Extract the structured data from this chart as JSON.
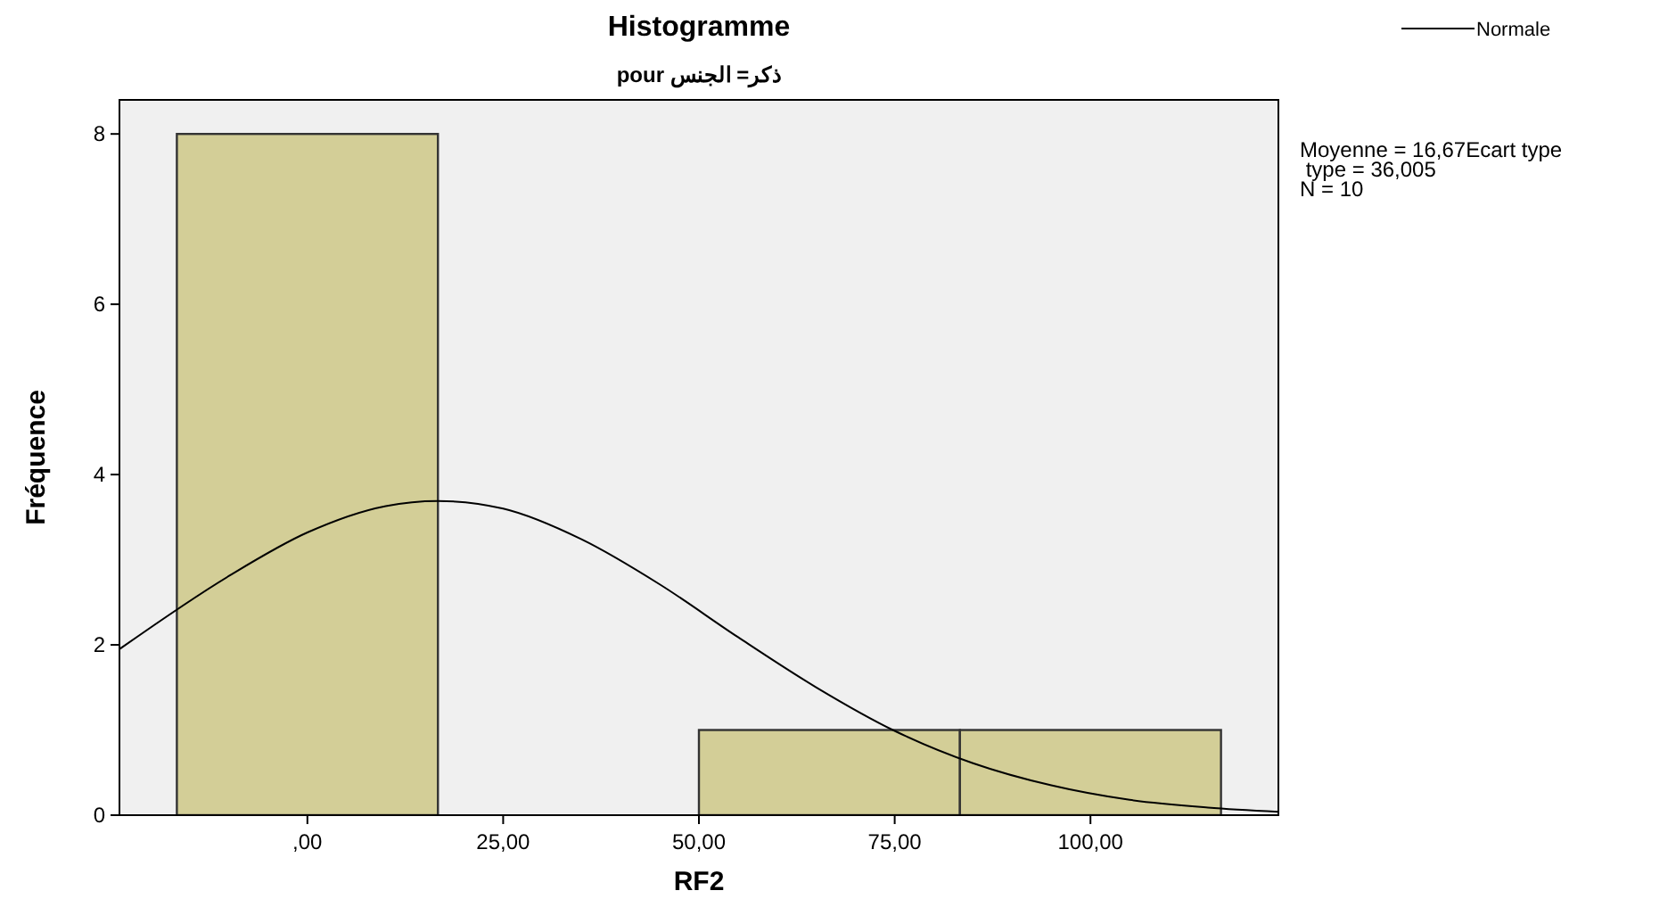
{
  "chart_data": {
    "type": "histogram",
    "title": "Histogramme",
    "subtitle": "pour ذكر= الجنس",
    "xlabel": "RF2",
    "ylabel": "Fréquence",
    "series": [
      {
        "bins": [
          -16.67,
          16.67,
          50,
          83.33,
          116.67
        ],
        "values": [
          8,
          0,
          1,
          1
        ],
        "color": "#d3ce97"
      },
      {
        "type": "line",
        "name": "Normale",
        "color": "#000000",
        "x": [
          -24,
          -10,
          0,
          10,
          16.67,
          25,
          35,
          45,
          55,
          65,
          75,
          85,
          95,
          105,
          115,
          124
        ],
        "values": [
          1.95,
          2.81,
          3.32,
          3.63,
          3.69,
          3.6,
          3.24,
          2.71,
          2.09,
          1.5,
          0.99,
          0.61,
          0.35,
          0.18,
          0.09,
          0.04
        ]
      }
    ],
    "xlim": [
      -24,
      124
    ],
    "xticks": [
      {
        "value": 0,
        "label": ",00"
      },
      {
        "value": 25,
        "label": "25,00"
      },
      {
        "value": 50,
        "label": "50,00"
      },
      {
        "value": 75,
        "label": "75,00"
      },
      {
        "value": 100,
        "label": "100,00"
      }
    ],
    "ylim": [
      0,
      8.4
    ],
    "yticks": [
      0,
      2,
      4,
      6,
      8
    ],
    "legend": "top right",
    "grid": false,
    "annotations": [
      "Moyenne = 16,67Ecart type",
      " type = 36,005",
      "N = 10"
    ]
  }
}
